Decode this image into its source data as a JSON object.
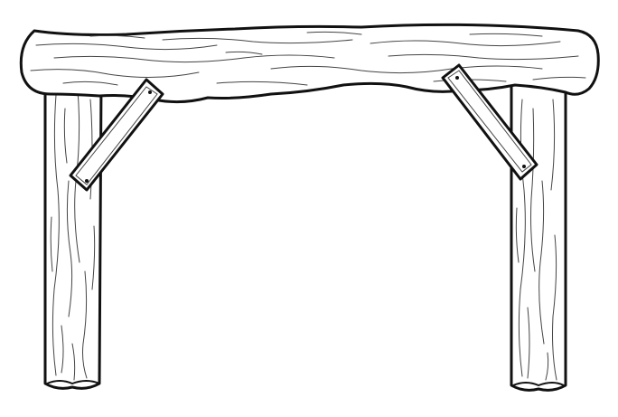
{
  "scene": {
    "subject": "wooden-log-gateway",
    "style": "line-art",
    "colors": {
      "background": "#ffffff",
      "outline": "#111111",
      "grain": "#444444",
      "fill": "#ffffff"
    },
    "parts": {
      "crossbeam": "log",
      "posts": [
        "left-post",
        "right-post"
      ],
      "braces": [
        "left-brace",
        "right-brace"
      ]
    }
  }
}
